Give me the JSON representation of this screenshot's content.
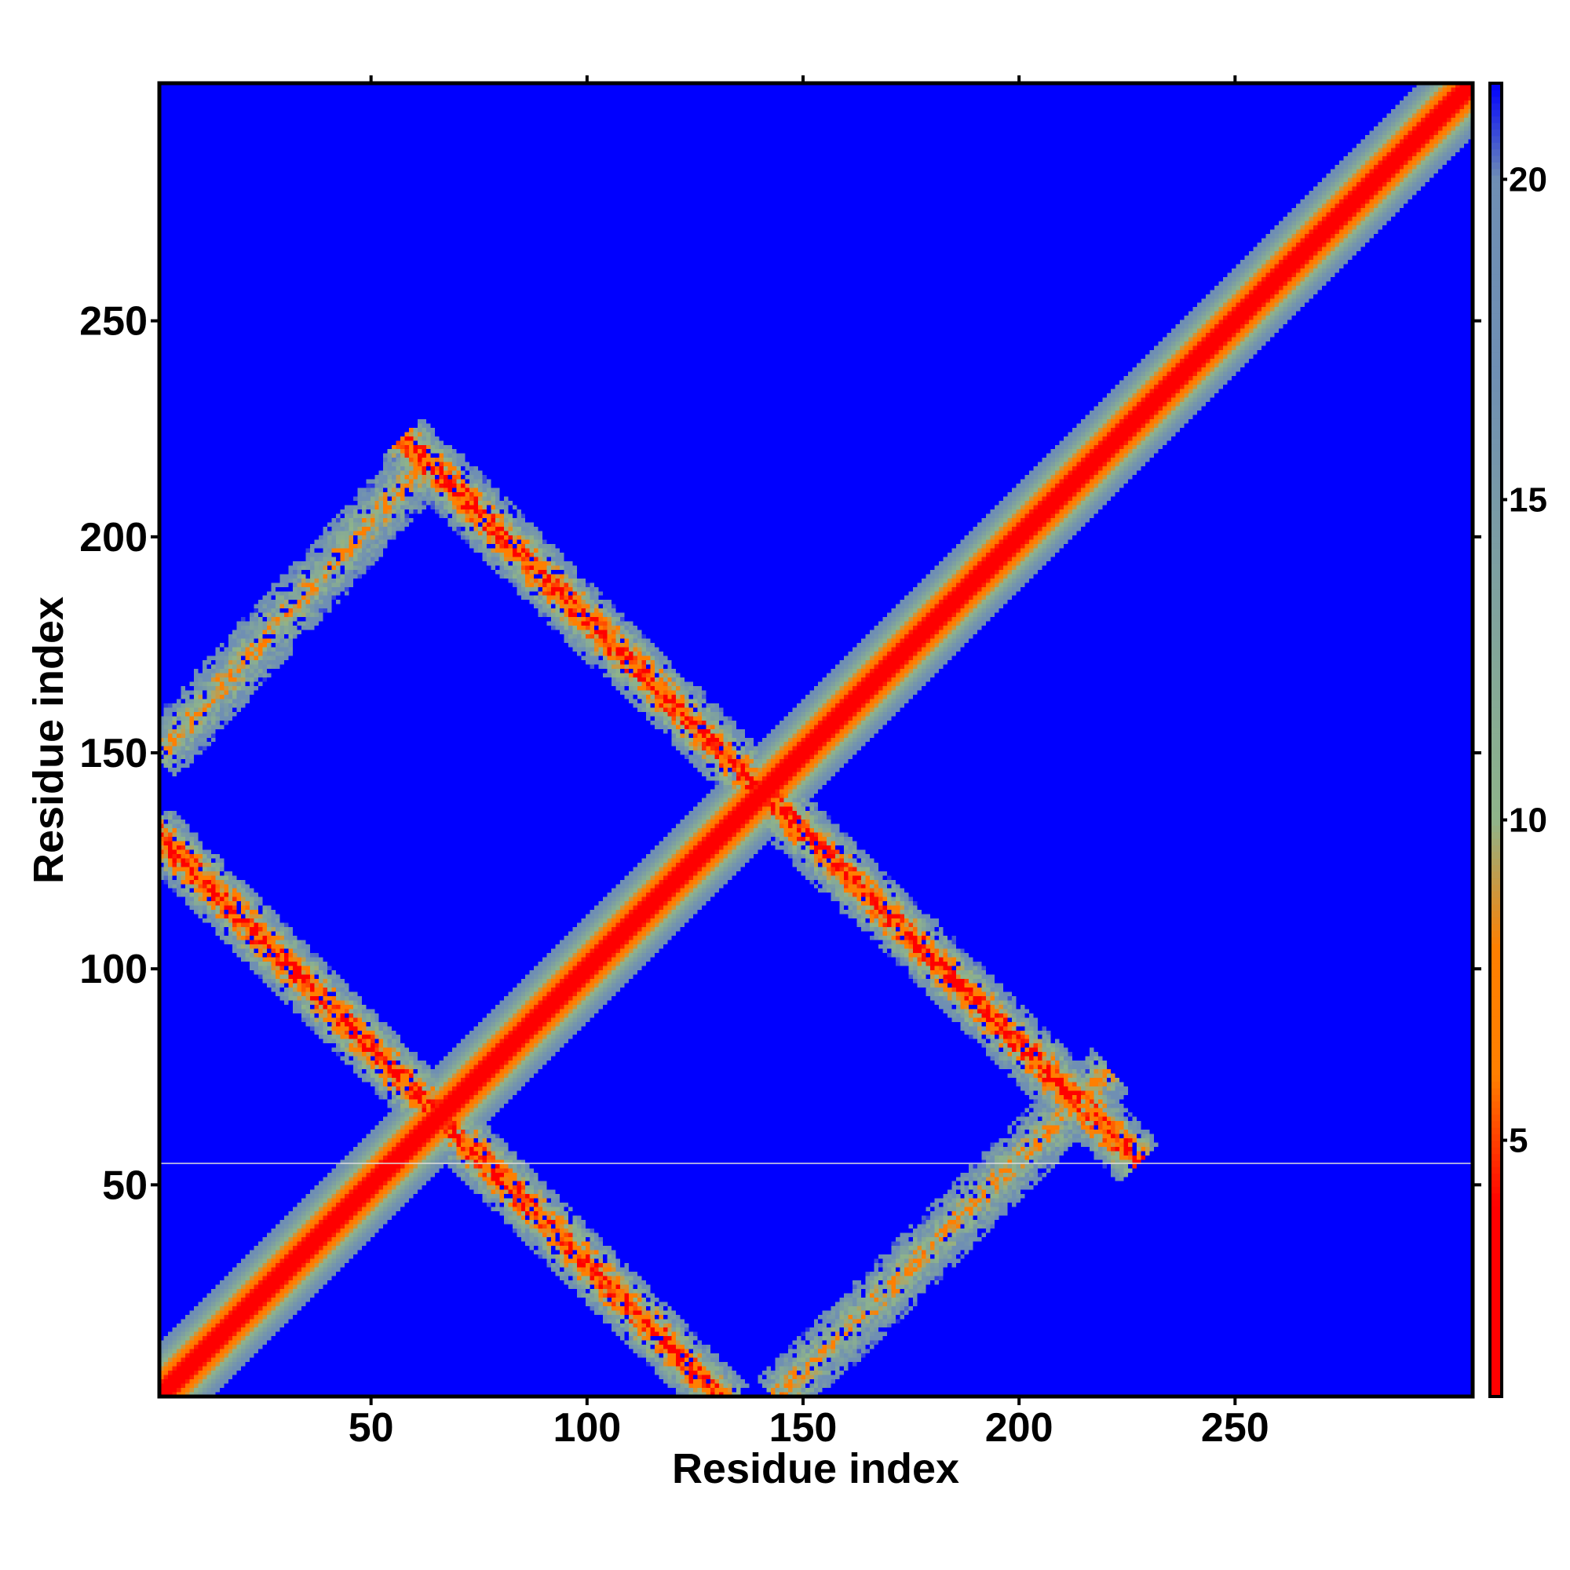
{
  "chart_data": {
    "type": "heatmap",
    "title": "",
    "xlabel": "Residue index",
    "ylabel": "Residue index",
    "xlim": [
      1,
      305
    ],
    "ylim": [
      1,
      305
    ],
    "x_ticks": [
      50,
      100,
      150,
      200,
      250
    ],
    "y_ticks": [
      50,
      100,
      150,
      200,
      250
    ],
    "background_value": 21,
    "colorbar": {
      "range": [
        1,
        21.5
      ],
      "ticks": [
        5,
        10,
        15,
        20
      ],
      "colors": {
        "min": "#ff0000",
        "low": "#ff7f00",
        "mid": "#8fb48a",
        "high": "#6f8fb3",
        "max": "#0000ff"
      }
    },
    "bands": [
      {
        "name": "main diagonal",
        "from": [
          1,
          1
        ],
        "to": [
          305,
          305
        ],
        "min_value": 1.5
      },
      {
        "name": "anti-diagonal 1",
        "from": [
          1,
          130
        ],
        "to": [
          130,
          1
        ],
        "min_value": 4
      },
      {
        "name": "anti-diagonal 2",
        "from": [
          60,
          220
        ],
        "to": [
          225,
          58
        ],
        "min_value": 4
      },
      {
        "name": "parallel band lower-left",
        "from": [
          1,
          150
        ],
        "to": [
          60,
          215
        ],
        "min_value": 9
      },
      {
        "name": "parallel band lower-right",
        "from": [
          145,
          1
        ],
        "to": [
          220,
          75
        ],
        "min_value": 9
      }
    ]
  }
}
